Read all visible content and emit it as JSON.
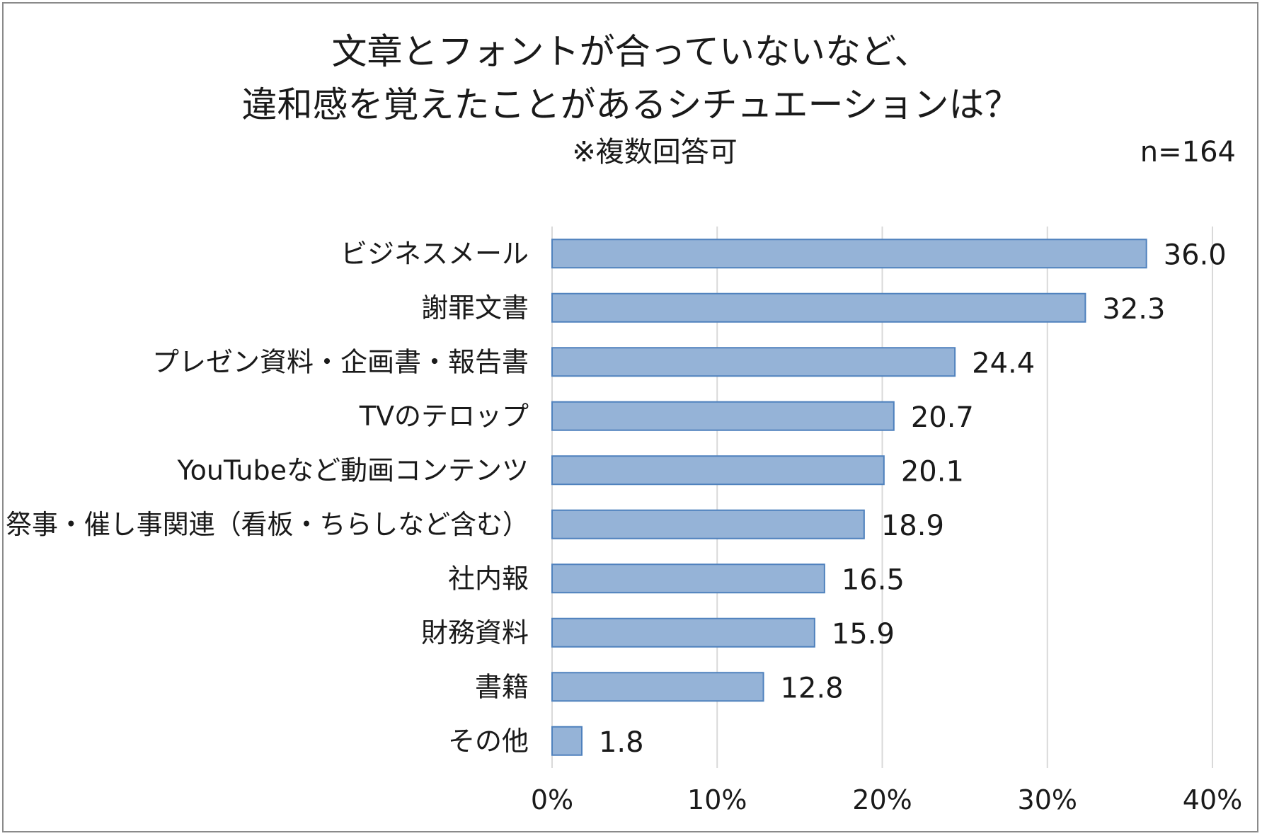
{
  "chart_data": {
    "type": "bar",
    "orientation": "horizontal",
    "title_lines": [
      "文章とフォントが合っていないなど、",
      "違和感を覚えたことがあるシチュエーションは？"
    ],
    "subtitle": "※複数回答可",
    "sample_size": "n=164",
    "categories": [
      "ビジネスメール",
      "謝罪文書",
      "プレゼン資料・企画書・報告書",
      "TVのテロップ",
      "YouTubeなど動画コンテンツ",
      "祭事・催し事関連（看板・ちらしなど含む）",
      "社内報",
      "財務資料",
      "書籍",
      "その他"
    ],
    "values": [
      36.0,
      32.3,
      24.4,
      20.7,
      20.1,
      18.9,
      16.5,
      15.9,
      12.8,
      1.8
    ],
    "value_labels": [
      "36.0",
      "32.3",
      "24.4",
      "20.7",
      "20.1",
      "18.9",
      "16.5",
      "15.9",
      "12.8",
      "1.8"
    ],
    "x_ticks": [
      0,
      10,
      20,
      30,
      40
    ],
    "x_tick_labels": [
      "0%",
      "10%",
      "20%",
      "30%",
      "40%"
    ],
    "xlim": [
      0,
      40
    ],
    "grid": true,
    "bar_color": "#95b3d7",
    "bar_border_color": "#4f81bd",
    "grid_color": "#d9d9d9"
  }
}
